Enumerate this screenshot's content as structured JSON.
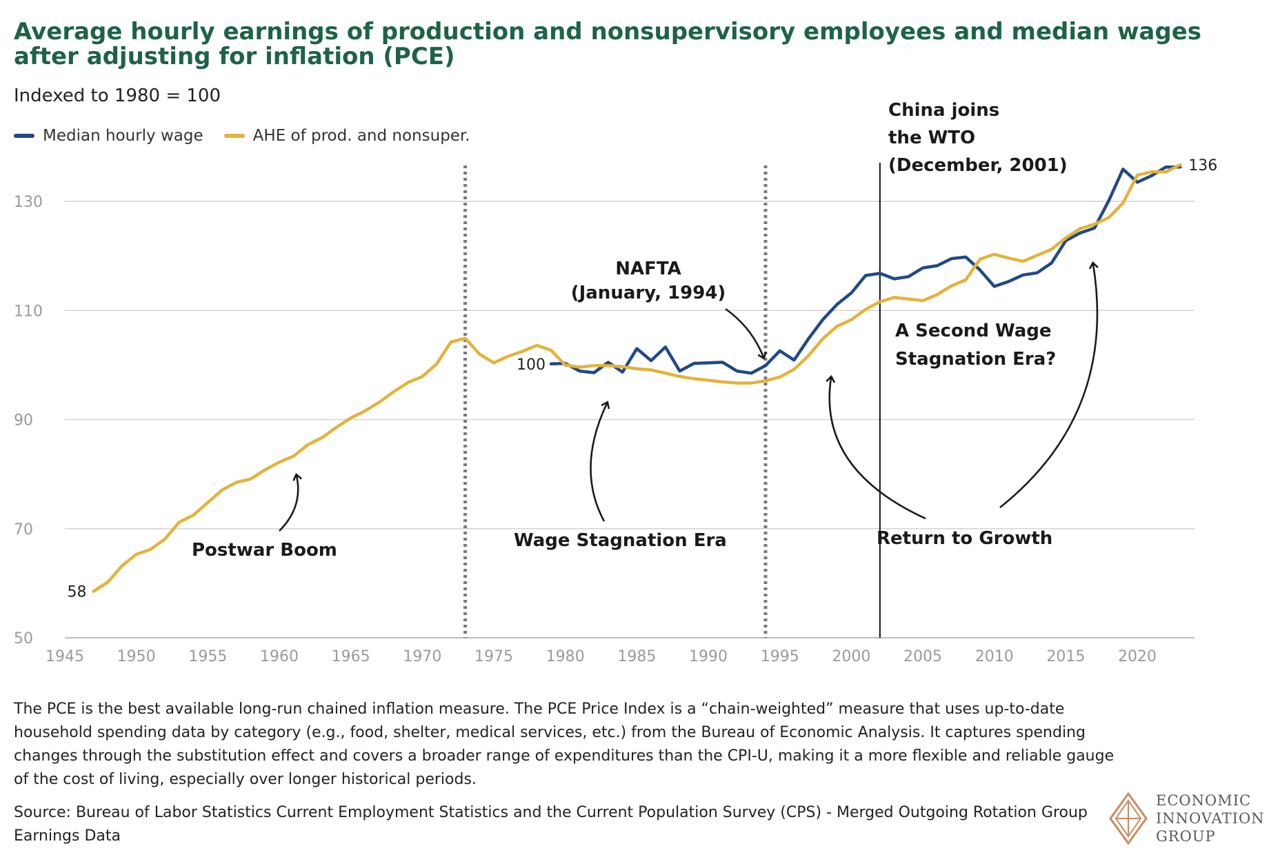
{
  "title": "Average hourly earnings of production and nonsupervisory employees and median wages after adjusting for inflation (PCE)",
  "subtitle": "Indexed to 1980 = 100",
  "legend": [
    {
      "label": "Median hourly wage",
      "color": "#1f4a87"
    },
    {
      "label": "AHE of prod. and nonsuper.",
      "color": "#e3b33a"
    }
  ],
  "chart_data": {
    "type": "line",
    "xlim": [
      1945,
      2024
    ],
    "ylim": [
      50,
      138
    ],
    "x_ticks": [
      1945,
      1950,
      1955,
      1960,
      1965,
      1970,
      1975,
      1980,
      1985,
      1990,
      1995,
      2000,
      2005,
      2010,
      2015,
      2020
    ],
    "y_ticks": [
      50,
      70,
      90,
      110,
      130
    ],
    "grid": true,
    "series": [
      {
        "name": "AHE of prod. and nonsuper.",
        "color": "#e3b33a",
        "x": [
          1947,
          1948,
          1949,
          1950,
          1951,
          1952,
          1953,
          1954,
          1955,
          1956,
          1957,
          1958,
          1959,
          1960,
          1961,
          1962,
          1963,
          1964,
          1965,
          1966,
          1967,
          1968,
          1969,
          1970,
          1971,
          1972,
          1973,
          1974,
          1975,
          1976,
          1977,
          1978,
          1979,
          1980,
          1981,
          1982,
          1983,
          1984,
          1985,
          1986,
          1987,
          1988,
          1989,
          1990,
          1991,
          1992,
          1993,
          1994,
          1995,
          1996,
          1997,
          1998,
          1999,
          2000,
          2001,
          2002,
          2003,
          2004,
          2005,
          2006,
          2007,
          2008,
          2009,
          2010,
          2011,
          2012,
          2013,
          2014,
          2015,
          2016,
          2017,
          2018,
          2019,
          2020,
          2021,
          2022,
          2023
        ],
        "values": [
          58.5,
          60.2,
          63.2,
          65.3,
          66.2,
          68.1,
          71.2,
          72.5,
          74.8,
          77.1,
          78.5,
          79.1,
          80.8,
          82.2,
          83.3,
          85.4,
          86.7,
          88.6,
          90.3,
          91.6,
          93.2,
          95.1,
          96.8,
          97.9,
          100.2,
          104.2,
          104.9,
          102.0,
          100.4,
          101.6,
          102.5,
          103.6,
          102.7,
          100.0,
          99.6,
          99.9,
          99.9,
          99.7,
          99.3,
          99.1,
          98.5,
          97.9,
          97.5,
          97.2,
          96.9,
          96.7,
          96.7,
          97.1,
          97.8,
          99.2,
          101.7,
          104.8,
          107.1,
          108.3,
          110.2,
          111.6,
          112.4,
          112.1,
          111.8,
          112.9,
          114.5,
          115.6,
          119.4,
          120.3,
          119.6,
          119.0,
          120.1,
          121.2,
          123.3,
          125.0,
          125.8,
          127.0,
          129.7,
          134.8,
          135.4,
          135.4,
          136.7
        ]
      },
      {
        "name": "Median hourly wage",
        "color": "#1f4a87",
        "x": [
          1979,
          1980,
          1981,
          1982,
          1983,
          1984,
          1985,
          1986,
          1987,
          1988,
          1989,
          1990,
          1991,
          1992,
          1993,
          1994,
          1995,
          1996,
          1997,
          1998,
          1999,
          2000,
          2001,
          2002,
          2003,
          2004,
          2005,
          2006,
          2007,
          2008,
          2009,
          2010,
          2011,
          2012,
          2013,
          2014,
          2015,
          2016,
          2017,
          2018,
          2019,
          2020,
          2021,
          2022,
          2023
        ],
        "values": [
          100.2,
          100.3,
          98.9,
          98.6,
          100.5,
          98.7,
          103.0,
          100.8,
          103.3,
          98.9,
          100.3,
          100.4,
          100.5,
          98.9,
          98.5,
          99.9,
          102.6,
          100.9,
          104.8,
          108.3,
          111.1,
          113.2,
          116.4,
          116.8,
          115.8,
          116.2,
          117.8,
          118.2,
          119.5,
          119.8,
          117.4,
          114.4,
          115.3,
          116.5,
          116.9,
          118.7,
          122.8,
          124.2,
          125.1,
          130.1,
          135.9,
          133.5,
          134.7,
          136.3,
          136.3
        ]
      }
    ],
    "end_labels": {
      "start": "58",
      "base": "100",
      "end": "136"
    },
    "events": [
      {
        "year": 1973,
        "style": "dotted"
      },
      {
        "year": 1994,
        "style": "dotted",
        "label_lines": [
          "NAFTA",
          "(January, 1994)"
        ]
      },
      {
        "year": 2002,
        "style": "solid",
        "label_lines": [
          "China joins",
          "the WTO",
          "(December, 2001)"
        ]
      }
    ],
    "annotations": {
      "postwar": "Postwar Boom",
      "stagnation": "Wage Stagnation Era",
      "second_stagnation": [
        "A Second Wage",
        "Stagnation Era?"
      ],
      "growth": "Return to Growth"
    }
  },
  "note": "The PCE is the best available long-run chained inflation measure. The PCE Price Index is a “chain-weighted” measure that uses up-to-date household spending data by category (e.g., food, shelter, medical services, etc.) from the Bureau of Economic Analysis. It captures spending changes through the substitution effect and covers a broader range of expenditures than the CPI-U, making it a more flexible and reliable gauge of the cost of living, especially over longer historical periods.",
  "source": "Source: Bureau of Labor Statistics Current Employment Statistics and the Current Population Survey (CPS) - Merged Outgoing Rotation Group Earnings Data",
  "logo": {
    "line1": "ECONOMIC",
    "line2": "INNOVATION",
    "line3": "GROUP"
  }
}
